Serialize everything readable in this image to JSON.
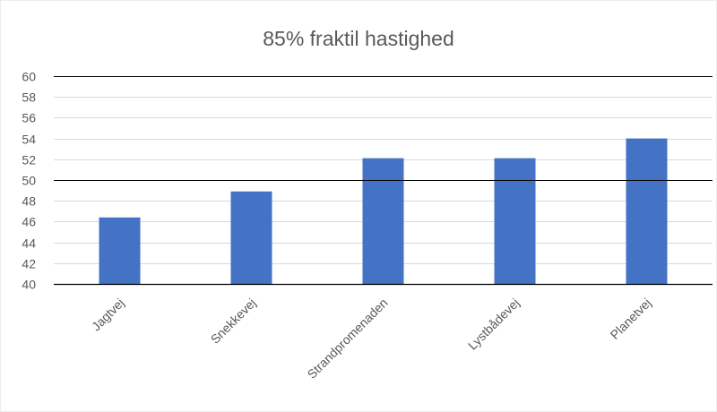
{
  "chart_data": {
    "type": "bar",
    "title": "85% fraktil hastighed",
    "xlabel": "",
    "ylabel": "",
    "categories": [
      "Jagtvej",
      "Snekkevej",
      "Strandpromenaden",
      "Lystbådevej",
      "Planetvej"
    ],
    "values": [
      46.4,
      48.9,
      52.1,
      52.1,
      54.0
    ],
    "ylim": [
      40,
      60
    ],
    "yticks": [
      "60",
      "58",
      "56",
      "54",
      "52",
      "50",
      "48",
      "46",
      "44",
      "42",
      "40"
    ],
    "reference_lines": [
      50,
      60
    ],
    "grid": true,
    "legend": "none",
    "colors": {
      "bar": "#4472C4",
      "gridline": "#D9D9D9",
      "reference_line": "#000000",
      "text": "#595959"
    }
  }
}
